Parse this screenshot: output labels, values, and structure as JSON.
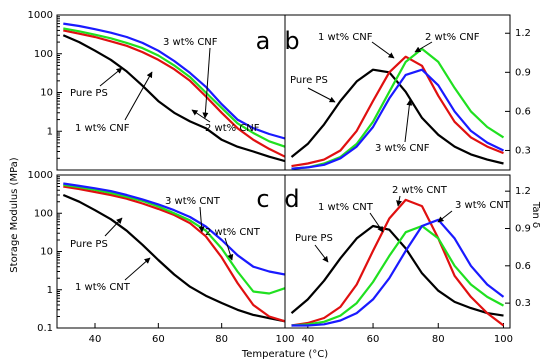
{
  "axis_labels": {
    "y": "Storage Modulus (MPa)",
    "x": "Temperature (°C)",
    "y2": "Tan δ"
  },
  "chart_data": [
    {
      "type": "line",
      "panel_label": "a",
      "yaxis_side": "left",
      "log_y": true,
      "x": [
        30,
        35,
        40,
        45,
        50,
        55,
        60,
        65,
        70,
        75,
        80,
        85,
        90,
        95,
        100
      ],
      "xlim": [
        28,
        100
      ],
      "ylim": [
        0.1,
        1000
      ],
      "yticks": [
        1,
        10,
        100,
        1000
      ],
      "series": [
        {
          "name": "Pure PS",
          "color": "#000000",
          "values": [
            300,
            200,
            120,
            70,
            35,
            15,
            6,
            3,
            1.8,
            1.2,
            0.6,
            0.4,
            0.3,
            0.22,
            0.17
          ]
        },
        {
          "name": "1 wt% CNF",
          "color": "#e01010",
          "values": [
            400,
            330,
            270,
            210,
            160,
            110,
            70,
            40,
            20,
            8,
            3,
            1.2,
            0.6,
            0.35,
            0.22
          ]
        },
        {
          "name": "2 wt% CNF",
          "color": "#20e020",
          "values": [
            450,
            380,
            310,
            250,
            190,
            140,
            90,
            50,
            25,
            10,
            4,
            1.6,
            0.9,
            0.55,
            0.4
          ]
        },
        {
          "name": "3 wt% CNF",
          "color": "#1a1aff",
          "values": [
            600,
            520,
            430,
            350,
            270,
            190,
            120,
            65,
            32,
            14,
            5,
            2,
            1.2,
            0.85,
            0.65
          ]
        }
      ]
    },
    {
      "type": "line",
      "panel_label": "b",
      "yaxis_side": "right",
      "log_y": false,
      "x": [
        35,
        40,
        45,
        50,
        55,
        60,
        65,
        70,
        75,
        80,
        85,
        90,
        95,
        100
      ],
      "xlim": [
        33,
        102
      ],
      "ylim": [
        0.15,
        1.34
      ],
      "yticks": [
        0.3,
        0.6,
        0.9,
        1.2
      ],
      "series": [
        {
          "name": "Pure PS",
          "color": "#000000",
          "values": [
            0.25,
            0.35,
            0.5,
            0.68,
            0.83,
            0.92,
            0.9,
            0.75,
            0.55,
            0.42,
            0.33,
            0.27,
            0.23,
            0.2
          ]
        },
        {
          "name": "1 wt% CNF",
          "color": "#e01010",
          "values": [
            0.18,
            0.2,
            0.23,
            0.3,
            0.45,
            0.68,
            0.9,
            1.02,
            0.95,
            0.72,
            0.52,
            0.4,
            0.33,
            0.28
          ]
        },
        {
          "name": "2 wt% CNF",
          "color": "#20e020",
          "values": [
            0.16,
            0.17,
            0.2,
            0.25,
            0.35,
            0.52,
            0.75,
            0.98,
            1.08,
            0.98,
            0.78,
            0.6,
            0.48,
            0.4
          ]
        },
        {
          "name": "3 wt% CNF",
          "color": "#1a1aff",
          "values": [
            0.16,
            0.17,
            0.19,
            0.24,
            0.33,
            0.48,
            0.7,
            0.88,
            0.92,
            0.8,
            0.6,
            0.45,
            0.36,
            0.3
          ]
        }
      ]
    },
    {
      "type": "line",
      "panel_label": "c",
      "yaxis_side": "left",
      "log_y": true,
      "x": [
        30,
        35,
        40,
        45,
        50,
        55,
        60,
        65,
        70,
        75,
        80,
        85,
        90,
        95,
        100
      ],
      "xlim": [
        28,
        100
      ],
      "ylim": [
        0.1,
        1000
      ],
      "yticks": [
        0.1,
        1,
        10,
        100,
        1000
      ],
      "xticks": [
        40,
        60,
        80,
        100
      ],
      "series": [
        {
          "name": "Pure PS",
          "color": "#000000",
          "values": [
            300,
            200,
            120,
            70,
            35,
            15,
            6,
            2.5,
            1.2,
            0.7,
            0.45,
            0.3,
            0.22,
            0.18,
            0.15
          ]
        },
        {
          "name": "1 wt% CNT",
          "color": "#e01010",
          "values": [
            500,
            430,
            360,
            300,
            240,
            180,
            130,
            90,
            55,
            25,
            7,
            1.5,
            0.4,
            0.2,
            0.15
          ]
        },
        {
          "name": "2 wt% CNT",
          "color": "#20e020",
          "values": [
            550,
            480,
            410,
            340,
            270,
            210,
            150,
            100,
            65,
            35,
            12,
            3,
            0.9,
            0.8,
            1.1
          ]
        },
        {
          "name": "3 wt% CNT",
          "color": "#1a1aff",
          "values": [
            600,
            520,
            450,
            380,
            300,
            230,
            170,
            120,
            80,
            45,
            20,
            8,
            4,
            3,
            2.5
          ]
        }
      ]
    },
    {
      "type": "line",
      "panel_label": "d",
      "yaxis_side": "right",
      "log_y": false,
      "x": [
        35,
        40,
        45,
        50,
        55,
        60,
        65,
        70,
        75,
        80,
        85,
        90,
        95,
        100
      ],
      "xlim": [
        33,
        102
      ],
      "ylim": [
        0.1,
        1.33
      ],
      "yticks": [
        0.3,
        0.6,
        0.9,
        1.2
      ],
      "xticks": [
        40,
        60,
        80,
        100
      ],
      "series": [
        {
          "name": "Pure PS",
          "color": "#000000",
          "values": [
            0.22,
            0.33,
            0.48,
            0.66,
            0.82,
            0.92,
            0.89,
            0.74,
            0.54,
            0.4,
            0.31,
            0.26,
            0.22,
            0.2
          ]
        },
        {
          "name": "1 wt% CNT",
          "color": "#e01010",
          "values": [
            0.12,
            0.14,
            0.18,
            0.27,
            0.45,
            0.72,
            0.98,
            1.13,
            1.08,
            0.82,
            0.52,
            0.35,
            0.22,
            0.12
          ]
        },
        {
          "name": "2 wt% CNT",
          "color": "#20e020",
          "values": [
            0.12,
            0.13,
            0.15,
            0.2,
            0.3,
            0.47,
            0.68,
            0.87,
            0.92,
            0.82,
            0.6,
            0.45,
            0.35,
            0.28
          ]
        },
        {
          "name": "3 wt% CNT",
          "color": "#1a1aff",
          "values": [
            0.12,
            0.12,
            0.13,
            0.16,
            0.22,
            0.33,
            0.5,
            0.72,
            0.92,
            0.97,
            0.82,
            0.6,
            0.45,
            0.35
          ]
        }
      ]
    }
  ]
}
